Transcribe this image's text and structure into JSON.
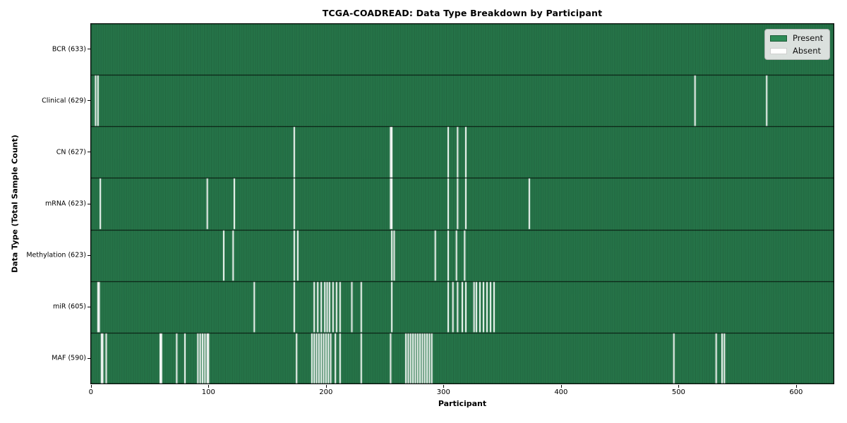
{
  "title": "TCGA-COADREAD: Data Type Breakdown by Participant",
  "xlabel": "Participant",
  "ylabel": "Data Type (Total Sample Count)",
  "legend": {
    "present_label": "Present",
    "absent_label": "Absent"
  },
  "colors": {
    "present": "#2E8B57",
    "absent": "#FFFFFF",
    "bar_edge": "rgba(0,0,0,0.42)",
    "row_divider": "rgba(0,0,0,0.85)",
    "axes_border": "#000000",
    "legend_bg": "#E9E9E9"
  },
  "chart_data": {
    "type": "heatmap",
    "title": "TCGA-COADREAD: Data Type Breakdown by Participant",
    "xlabel": "Participant",
    "ylabel": "Data Type (Total Sample Count)",
    "n_participants": 633,
    "xlim": [
      -0.5,
      632.5
    ],
    "x_ticks": [
      0,
      100,
      200,
      300,
      400,
      500,
      600
    ],
    "grid": false,
    "legend_entries": [
      "Present",
      "Absent"
    ],
    "legend_position": "upper right",
    "cell_states": {
      "present": 1,
      "absent": 0
    },
    "rows": [
      {
        "label": "BCR (633)",
        "data_type": "BCR",
        "total_samples": 633,
        "absent_participants": []
      },
      {
        "label": "Clinical (629)",
        "data_type": "Clinical",
        "total_samples": 629,
        "absent_participants": [
          4,
          6,
          514,
          575
        ]
      },
      {
        "label": "CN (627)",
        "data_type": "CN",
        "total_samples": 627,
        "absent_participants": [
          173,
          255,
          256,
          304,
          312,
          319
        ]
      },
      {
        "label": "mRNA (623)",
        "data_type": "mRNA",
        "total_samples": 623,
        "absent_participants": [
          8,
          99,
          122,
          173,
          255,
          256,
          304,
          312,
          319,
          373
        ]
      },
      {
        "label": "Methylation (623)",
        "data_type": "Methylation",
        "total_samples": 623,
        "absent_participants": [
          113,
          121,
          173,
          176,
          256,
          258,
          293,
          304,
          311,
          318
        ]
      },
      {
        "label": "miR (605)",
        "data_type": "miR",
        "total_samples": 605,
        "absent_participants": [
          6,
          7,
          139,
          173,
          190,
          193,
          196,
          199,
          201,
          203,
          206,
          209,
          212,
          222,
          230,
          256,
          304,
          308,
          312,
          316,
          319,
          326,
          328,
          331,
          334,
          337,
          340,
          343
        ]
      },
      {
        "label": "MAF (590)",
        "data_type": "MAF",
        "total_samples": 590,
        "absent_participants": [
          9,
          10,
          13,
          59,
          60,
          73,
          80,
          91,
          93,
          95,
          97,
          99,
          100,
          175,
          188,
          190,
          192,
          194,
          196,
          198,
          200,
          202,
          204,
          208,
          212,
          230,
          255,
          268,
          270,
          272,
          274,
          276,
          278,
          280,
          282,
          284,
          286,
          288,
          290,
          496,
          532,
          537,
          539
        ]
      }
    ]
  }
}
